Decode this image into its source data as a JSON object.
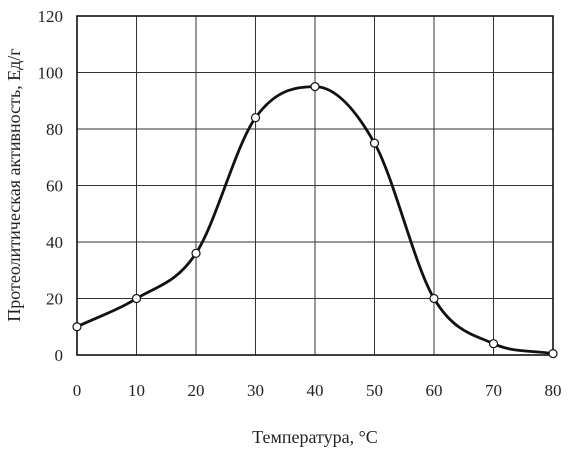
{
  "chart_data": {
    "type": "line",
    "xlabel": "Температура, °С",
    "ylabel": "Протеолитическая активность, Ед/г",
    "xlim": [
      0,
      80
    ],
    "ylim": [
      0,
      120
    ],
    "x_ticks": [
      0,
      10,
      20,
      30,
      40,
      50,
      60,
      70,
      80
    ],
    "y_ticks": [
      0,
      20,
      40,
      60,
      80,
      100,
      120
    ],
    "grid": true,
    "series": [
      {
        "x": [
          0,
          10,
          20,
          30,
          40,
          50,
          60,
          70,
          80
        ],
        "values": [
          10,
          20,
          36,
          84,
          95,
          75,
          20,
          4,
          0.5
        ],
        "color": "#111111",
        "marker": "open-circle"
      }
    ]
  }
}
